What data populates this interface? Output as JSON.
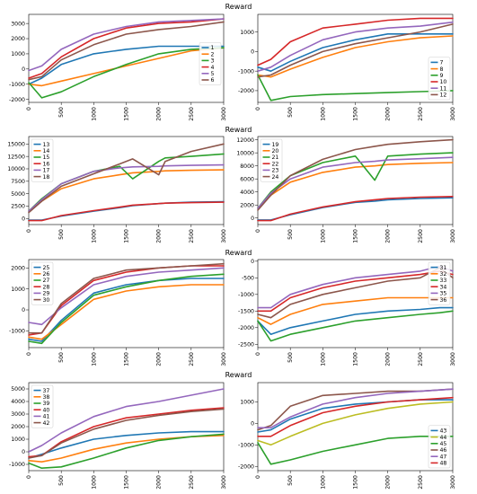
{
  "row_titles": [
    "Reward",
    "Reward",
    "Reward",
    "Reward"
  ],
  "chart_data": [
    {
      "type": "line",
      "row": 0,
      "col": 0,
      "x": [
        0,
        200,
        500,
        1000,
        1500,
        2000,
        2500,
        3000
      ],
      "xlim": [
        0,
        3000
      ],
      "ylim": [
        -2200,
        3600
      ],
      "xticks": [
        0,
        500,
        1000,
        1500,
        2000,
        2500,
        3000
      ],
      "yticks": [
        -2000,
        -1000,
        0,
        1000,
        2000,
        3000
      ],
      "legend_position": "right-center",
      "series": [
        {
          "name": "1",
          "color": "#1f77b4",
          "values": [
            -1000,
            -600,
            300,
            1000,
            1300,
            1500,
            1500,
            1500
          ]
        },
        {
          "name": "2",
          "color": "#ff7f0e",
          "values": [
            -1000,
            -1100,
            -800,
            -300,
            200,
            700,
            1200,
            1400
          ]
        },
        {
          "name": "3",
          "color": "#2ca02c",
          "values": [
            -900,
            -1900,
            -1500,
            -500,
            300,
            1000,
            1300,
            1400
          ]
        },
        {
          "name": "4",
          "color": "#d62728",
          "values": [
            -600,
            -300,
            800,
            2000,
            2700,
            3000,
            3100,
            3300
          ]
        },
        {
          "name": "5",
          "color": "#9467bd",
          "values": [
            -100,
            200,
            1300,
            2300,
            2800,
            3100,
            3200,
            3300
          ]
        },
        {
          "name": "6",
          "color": "#8c564b",
          "values": [
            -700,
            -500,
            600,
            1600,
            2300,
            2600,
            2800,
            3100
          ]
        }
      ]
    },
    {
      "type": "line",
      "row": 0,
      "col": 1,
      "x": [
        0,
        200,
        500,
        1000,
        1500,
        2000,
        2500,
        3000
      ],
      "xlim": [
        0,
        3000
      ],
      "ylim": [
        -2600,
        1900
      ],
      "xticks": [
        0,
        500,
        1000,
        1500,
        2000,
        2500,
        3000
      ],
      "yticks": [
        -2000,
        -1000,
        0,
        1000
      ],
      "legend_position": "lower-right",
      "series": [
        {
          "name": "7",
          "color": "#1f77b4",
          "values": [
            -800,
            -1000,
            -500,
            200,
            600,
            900,
            900,
            900
          ]
        },
        {
          "name": "8",
          "color": "#ff7f0e",
          "values": [
            -1200,
            -1300,
            -900,
            -300,
            200,
            500,
            700,
            800
          ]
        },
        {
          "name": "9",
          "color": "#2ca02c",
          "values": [
            -1200,
            -2500,
            -2300,
            -2200,
            -2150,
            -2100,
            -2050,
            -2000
          ]
        },
        {
          "name": "10",
          "color": "#d62728",
          "values": [
            -700,
            -400,
            500,
            1200,
            1400,
            1600,
            1700,
            1700
          ]
        },
        {
          "name": "11",
          "color": "#9467bd",
          "values": [
            -1000,
            -800,
            -200,
            600,
            1000,
            1200,
            1300,
            1500
          ]
        },
        {
          "name": "12",
          "color": "#8c564b",
          "values": [
            -1300,
            -1200,
            -700,
            0,
            400,
            700,
            1000,
            1400
          ]
        }
      ]
    },
    {
      "type": "line",
      "row": 1,
      "col": 0,
      "x": [
        0,
        200,
        500,
        1000,
        1400,
        1600,
        2000,
        2100,
        2500,
        3000
      ],
      "xlim": [
        0,
        3000
      ],
      "ylim": [
        -1200,
        16500
      ],
      "xticks": [
        0,
        500,
        1000,
        1500,
        2000,
        2500,
        3000
      ],
      "yticks": [
        0,
        2500,
        5000,
        7500,
        10000,
        12500,
        15000
      ],
      "legend_position": "upper-left",
      "series": [
        {
          "name": "13",
          "color": "#1f77b4",
          "values": [
            -300,
            -300,
            500,
            1500,
            2200,
            2600,
            3000,
            3100,
            3300,
            3400
          ]
        },
        {
          "name": "14",
          "color": "#ff7f0e",
          "values": [
            1500,
            3500,
            6000,
            8000,
            8800,
            9200,
            9500,
            9600,
            9700,
            9800
          ]
        },
        {
          "name": "15",
          "color": "#2ca02c",
          "values": [
            1500,
            4000,
            7000,
            9500,
            10500,
            8000,
            11500,
            12200,
            12500,
            13000
          ]
        },
        {
          "name": "16",
          "color": "#d62728",
          "values": [
            -400,
            -400,
            600,
            1600,
            2300,
            2700,
            3000,
            3100,
            3200,
            3300
          ]
        },
        {
          "name": "17",
          "color": "#9467bd",
          "values": [
            1500,
            3800,
            7000,
            9500,
            10200,
            10400,
            10500,
            10600,
            10700,
            10800
          ]
        },
        {
          "name": "18",
          "color": "#8c564b",
          "values": [
            1200,
            3500,
            6500,
            9000,
            11000,
            12000,
            8800,
            11500,
            13500,
            15000
          ]
        }
      ]
    },
    {
      "type": "line",
      "row": 1,
      "col": 1,
      "x": [
        0,
        200,
        500,
        1000,
        1500,
        1800,
        2000,
        2500,
        3000
      ],
      "xlim": [
        0,
        3000
      ],
      "ylim": [
        -1000,
        12500
      ],
      "xticks": [
        0,
        500,
        1000,
        1500,
        2000,
        2500,
        3000
      ],
      "yticks": [
        0,
        2000,
        4000,
        6000,
        8000,
        10000,
        12000
      ],
      "legend_position": "upper-left",
      "series": [
        {
          "name": "19",
          "color": "#1f77b4",
          "values": [
            -300,
            -300,
            500,
            1600,
            2400,
            2600,
            2800,
            3000,
            3100
          ]
        },
        {
          "name": "20",
          "color": "#ff7f0e",
          "values": [
            1500,
            3500,
            5500,
            7000,
            7800,
            8000,
            8200,
            8400,
            8500
          ]
        },
        {
          "name": "21",
          "color": "#2ca02c",
          "values": [
            1500,
            4000,
            6500,
            8500,
            9500,
            5800,
            9500,
            9800,
            10000
          ]
        },
        {
          "name": "22",
          "color": "#d62728",
          "values": [
            -400,
            -400,
            600,
            1700,
            2500,
            2800,
            3000,
            3200,
            3300
          ]
        },
        {
          "name": "23",
          "color": "#9467bd",
          "values": [
            1500,
            3800,
            6000,
            7800,
            8500,
            8700,
            8900,
            9100,
            9300
          ]
        },
        {
          "name": "24",
          "color": "#8c564b",
          "values": [
            1200,
            3500,
            6500,
            9000,
            10500,
            11000,
            11300,
            11700,
            12000
          ]
        }
      ]
    },
    {
      "type": "line",
      "row": 2,
      "col": 0,
      "x": [
        0,
        200,
        500,
        1000,
        1500,
        2000,
        2500,
        3000
      ],
      "xlim": [
        0,
        3000
      ],
      "ylim": [
        -1800,
        2400
      ],
      "xticks": [
        0,
        500,
        1000,
        1500,
        2000,
        2500,
        3000
      ],
      "yticks": [
        -1000,
        0,
        1000,
        2000
      ],
      "legend_position": "upper-left",
      "series": [
        {
          "name": "25",
          "color": "#1f77b4",
          "values": [
            -1400,
            -1500,
            -500,
            800,
            1200,
            1400,
            1500,
            1500
          ]
        },
        {
          "name": "26",
          "color": "#ff7f0e",
          "values": [
            -1300,
            -1400,
            -700,
            500,
            900,
            1100,
            1200,
            1200
          ]
        },
        {
          "name": "27",
          "color": "#2ca02c",
          "values": [
            -1500,
            -1600,
            -600,
            700,
            1100,
            1400,
            1600,
            1700
          ]
        },
        {
          "name": "28",
          "color": "#d62728",
          "values": [
            -1200,
            -1100,
            200,
            1400,
            1800,
            2000,
            2100,
            2100
          ]
        },
        {
          "name": "29",
          "color": "#9467bd",
          "values": [
            -600,
            -700,
            100,
            1200,
            1600,
            1800,
            1900,
            2000
          ]
        },
        {
          "name": "30",
          "color": "#8c564b",
          "values": [
            -1100,
            -1100,
            300,
            1500,
            1900,
            2000,
            2100,
            2200
          ]
        }
      ]
    },
    {
      "type": "line",
      "row": 2,
      "col": 1,
      "x": [
        0,
        200,
        500,
        1000,
        1500,
        2000,
        2500,
        2800,
        3000
      ],
      "xlim": [
        0,
        3000
      ],
      "ylim": [
        -2600,
        50
      ],
      "xticks": [
        0,
        500,
        1000,
        1500,
        2000,
        2500,
        3000
      ],
      "yticks": [
        -2500,
        -2000,
        -1500,
        -1000,
        -500,
        0
      ],
      "legend_position": "upper-right",
      "series": [
        {
          "name": "31",
          "color": "#1f77b4",
          "values": [
            -1800,
            -2200,
            -2000,
            -1800,
            -1600,
            -1500,
            -1450,
            -1400,
            -1400
          ]
        },
        {
          "name": "32",
          "color": "#ff7f0e",
          "values": [
            -1700,
            -1900,
            -1600,
            -1300,
            -1200,
            -1100,
            -1100,
            -1100,
            -1100
          ]
        },
        {
          "name": "33",
          "color": "#2ca02c",
          "values": [
            -1800,
            -2400,
            -2200,
            -2000,
            -1800,
            -1700,
            -1600,
            -1550,
            -1500
          ]
        },
        {
          "name": "34",
          "color": "#d62728",
          "values": [
            -1500,
            -1500,
            -1100,
            -800,
            -600,
            -500,
            -400,
            -300,
            -400
          ]
        },
        {
          "name": "35",
          "color": "#9467bd",
          "values": [
            -1400,
            -1400,
            -1000,
            -700,
            -500,
            -400,
            -300,
            -150,
            -300
          ]
        },
        {
          "name": "36",
          "color": "#8c564b",
          "values": [
            -1600,
            -1700,
            -1300,
            -1000,
            -800,
            -600,
            -500,
            -200,
            -500
          ]
        }
      ]
    },
    {
      "type": "line",
      "row": 3,
      "col": 0,
      "x": [
        0,
        200,
        500,
        1000,
        1500,
        2000,
        2500,
        3000
      ],
      "xlim": [
        0,
        3000
      ],
      "ylim": [
        -1500,
        5500
      ],
      "xticks": [
        0,
        500,
        1000,
        1500,
        2000,
        2500,
        3000
      ],
      "yticks": [
        -1000,
        0,
        1000,
        2000,
        3000,
        4000,
        5000
      ],
      "legend_position": "upper-left",
      "series": [
        {
          "name": "37",
          "color": "#1f77b4",
          "values": [
            -500,
            -200,
            300,
            1000,
            1300,
            1500,
            1600,
            1600
          ]
        },
        {
          "name": "38",
          "color": "#ff7f0e",
          "values": [
            -700,
            -800,
            -500,
            200,
            700,
            1000,
            1200,
            1300
          ]
        },
        {
          "name": "39",
          "color": "#2ca02c",
          "values": [
            -900,
            -1300,
            -1200,
            -500,
            300,
            900,
            1200,
            1400
          ]
        },
        {
          "name": "40",
          "color": "#d62728",
          "values": [
            -400,
            -300,
            800,
            2000,
            2700,
            3000,
            3300,
            3500
          ]
        },
        {
          "name": "41",
          "color": "#9467bd",
          "values": [
            0,
            500,
            1500,
            2800,
            3600,
            4000,
            4500,
            5000
          ]
        },
        {
          "name": "42",
          "color": "#8c564b",
          "values": [
            -500,
            -300,
            700,
            1800,
            2500,
            2900,
            3200,
            3400
          ]
        }
      ]
    },
    {
      "type": "line",
      "row": 3,
      "col": 1,
      "x": [
        0,
        200,
        500,
        1000,
        1500,
        2000,
        2500,
        3000
      ],
      "xlim": [
        0,
        3000
      ],
      "ylim": [
        -2200,
        1900
      ],
      "xticks": [
        0,
        500,
        1000,
        1500,
        2000,
        2500,
        3000
      ],
      "yticks": [
        -2000,
        -1000,
        0,
        1000
      ],
      "legend_position": "lower-right",
      "series": [
        {
          "name": "43",
          "color": "#1f77b4",
          "values": [
            -400,
            -300,
            200,
            700,
            900,
            1000,
            1100,
            1100
          ]
        },
        {
          "name": "44",
          "color": "#bcbd22",
          "values": [
            -800,
            -1000,
            -600,
            0,
            400,
            700,
            900,
            1000
          ]
        },
        {
          "name": "45",
          "color": "#2ca02c",
          "values": [
            -900,
            -1900,
            -1700,
            -1300,
            -1000,
            -700,
            -600,
            -600
          ]
        },
        {
          "name": "46",
          "color": "#8c564b",
          "values": [
            -300,
            -100,
            800,
            1300,
            1400,
            1500,
            1500,
            1600
          ]
        },
        {
          "name": "47",
          "color": "#9467bd",
          "values": [
            -200,
            -200,
            300,
            900,
            1200,
            1400,
            1500,
            1600
          ]
        },
        {
          "name": "48",
          "color": "#d62728",
          "values": [
            -600,
            -600,
            -100,
            500,
            800,
            1000,
            1100,
            1200
          ]
        }
      ]
    }
  ]
}
